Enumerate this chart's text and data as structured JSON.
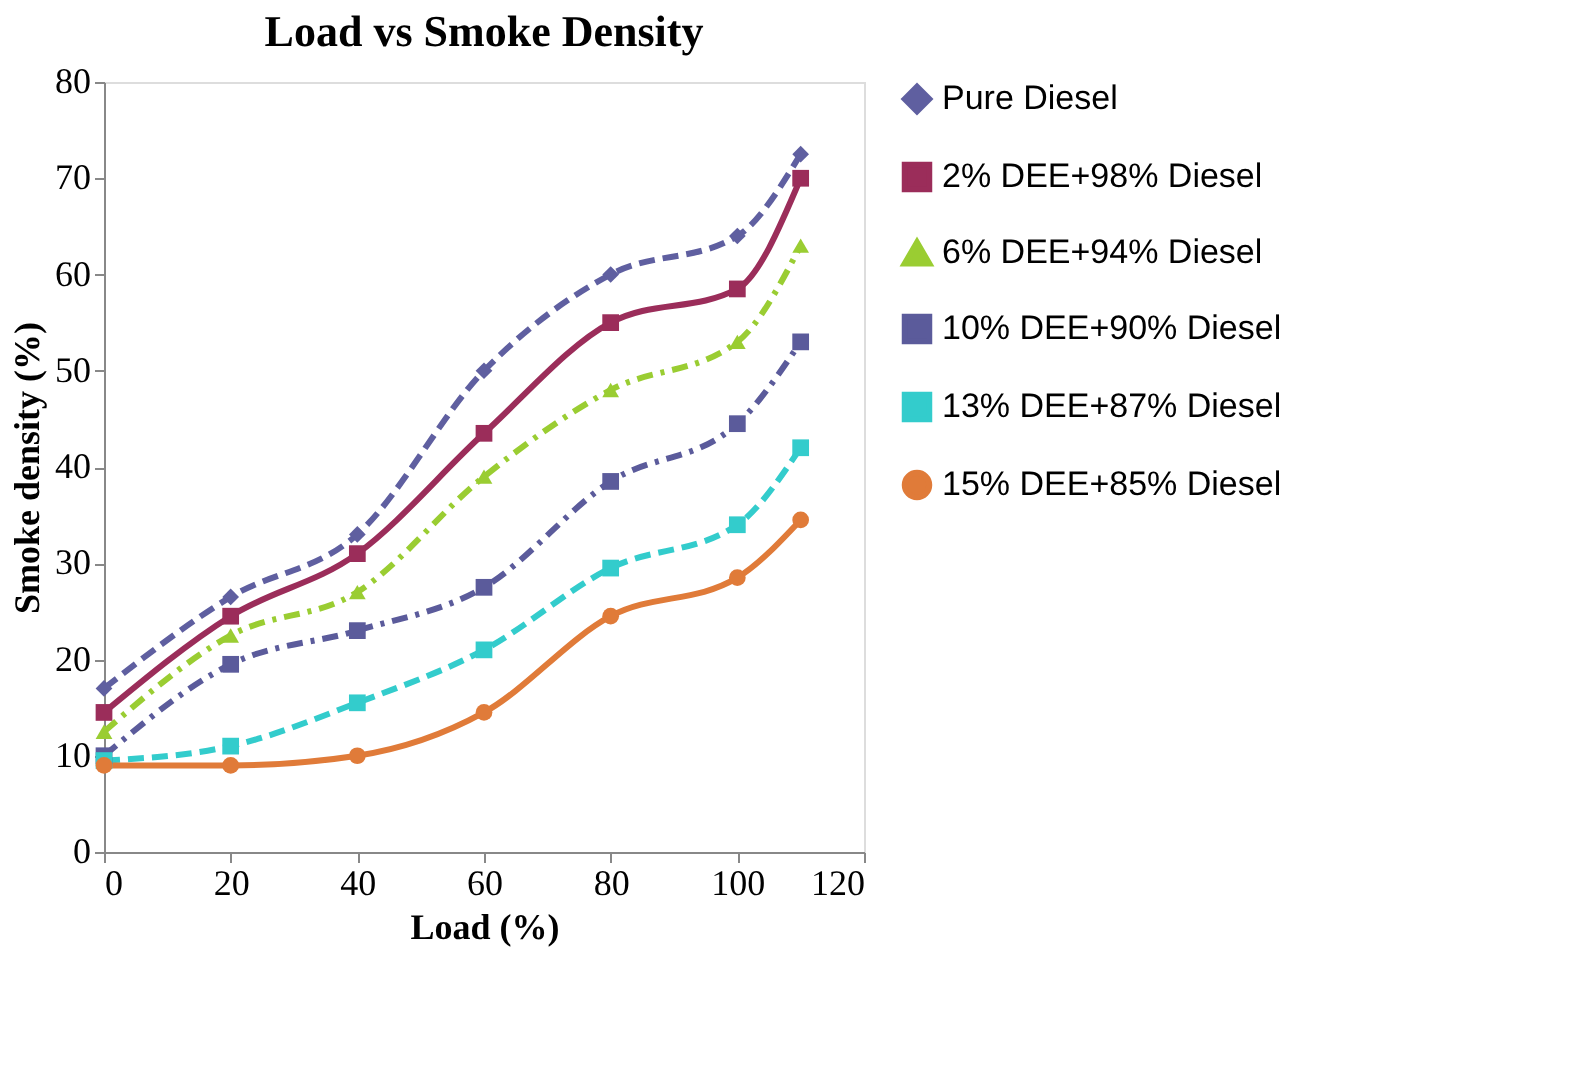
{
  "chart_data": {
    "type": "line",
    "title": "Load vs Smoke Density",
    "xlabel": "Load (%)",
    "ylabel": "Smoke density (%)",
    "x": [
      0,
      20,
      40,
      60,
      80,
      100,
      110
    ],
    "series": [
      {
        "name": "Pure Diesel",
        "color": "#5f5fa0",
        "marker": "diamond",
        "line_style": "dashed",
        "values": [
          17,
          26.5,
          33,
          50,
          60,
          64,
          72.5
        ]
      },
      {
        "name": "2% DEE+98% Diesel",
        "color": "#9b2d5a",
        "marker": "square",
        "line_style": "solid",
        "values": [
          14.5,
          24.5,
          31,
          43.5,
          55,
          58.5,
          70
        ]
      },
      {
        "name": "6% DEE+94% Diesel",
        "color": "#9acd32",
        "marker": "triangle",
        "line_style": "dotted",
        "values": [
          12.5,
          22.5,
          27,
          39,
          48,
          53,
          63
        ]
      },
      {
        "name": "10% DEE+90% Diesel",
        "color": "#5b5b9b",
        "marker": "square",
        "line_style": "dotted",
        "values": [
          10,
          19.5,
          23,
          27.5,
          38.5,
          44.5,
          53
        ]
      },
      {
        "name": "13% DEE+87% Diesel",
        "color": "#33cccc",
        "marker": "square",
        "line_style": "dashed",
        "values": [
          9.5,
          11,
          15.5,
          21,
          29.5,
          34,
          42
        ]
      },
      {
        "name": "15% DEE+85% Diesel",
        "color": "#e07b39",
        "marker": "circle",
        "line_style": "solid",
        "values": [
          9,
          9,
          10,
          14.5,
          24.5,
          28.5,
          34.5
        ]
      }
    ],
    "xlim": [
      0,
      120
    ],
    "xticks": [
      0,
      20,
      40,
      60,
      80,
      100,
      120
    ],
    "ylim": [
      0,
      80
    ],
    "yticks": [
      0,
      10,
      20,
      30,
      40,
      50,
      60,
      70,
      80
    ],
    "grid": false,
    "legend": "right"
  }
}
